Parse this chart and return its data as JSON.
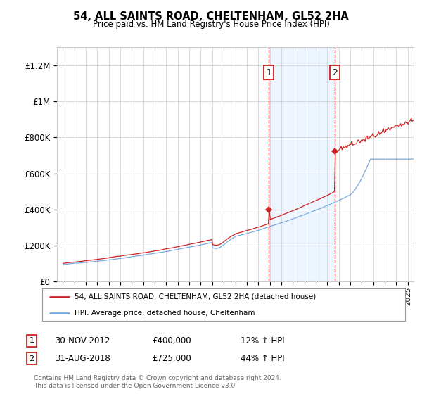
{
  "title": "54, ALL SAINTS ROAD, CHELTENHAM, GL52 2HA",
  "subtitle": "Price paid vs. HM Land Registry's House Price Index (HPI)",
  "legend_line1": "54, ALL SAINTS ROAD, CHELTENHAM, GL52 2HA (detached house)",
  "legend_line2": "HPI: Average price, detached house, Cheltenham",
  "footnote1": "Contains HM Land Registry data © Crown copyright and database right 2024.",
  "footnote2": "This data is licensed under the Open Government Licence v3.0.",
  "sale1_label": "1",
  "sale1_date": "30-NOV-2012",
  "sale1_price": "£400,000",
  "sale1_hpi": "12% ↑ HPI",
  "sale2_label": "2",
  "sale2_date": "31-AUG-2018",
  "sale2_price": "£725,000",
  "sale2_hpi": "44% ↑ HPI",
  "sale1_year": 2012.917,
  "sale1_value": 400000,
  "sale2_year": 2018.667,
  "sale2_value": 725000,
  "hpi_color": "#7aaadd",
  "price_color": "#cc2222",
  "shade_color": "#ddeeff",
  "ylim_max": 1300000,
  "xmin": 1994.5,
  "xmax": 2025.5,
  "background_color": "#ffffff",
  "grid_color": "#cccccc",
  "shade_alpha": 0.5
}
